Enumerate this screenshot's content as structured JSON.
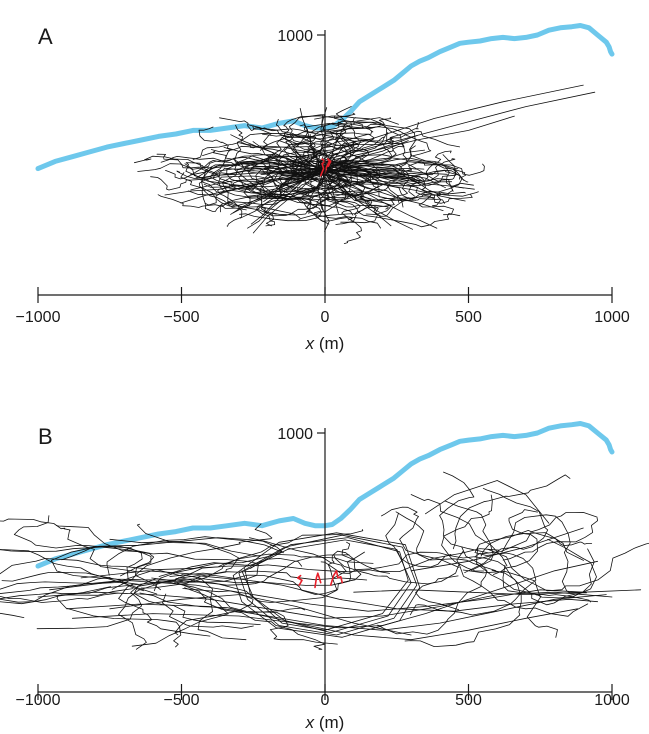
{
  "chart_data": [
    {
      "type": "line",
      "panel_label": "A",
      "xlabel_var": "x",
      "xlabel_unit": " (m)",
      "xlim": [
        -1000,
        1000
      ],
      "ylim": [
        -90,
        1000
      ],
      "x_ticks": [
        -1000,
        -500,
        0,
        500,
        1000
      ],
      "x_tick_labels": [
        "−1000",
        "−500",
        "0",
        "500",
        "1000"
      ],
      "y_ticks": [
        1000
      ],
      "y_tick_labels": [
        "1000"
      ],
      "grid": false,
      "legend": "none",
      "colors": {
        "coastline": "#6ec8ec",
        "tracks": "#111111",
        "highlight": "#e8202a"
      },
      "coastline": {
        "x": [
          -1000,
          -940,
          -880,
          -820,
          -760,
          -700,
          -640,
          -580,
          -520,
          -460,
          -400,
          -340,
          -280,
          -220,
          -160,
          -110,
          -70,
          -35,
          0,
          25,
          55,
          90,
          120,
          160,
          200,
          240,
          270,
          300,
          330,
          360,
          400,
          440,
          470,
          500,
          540,
          580,
          620,
          660,
          700,
          740,
          780,
          820,
          860,
          890,
          920,
          950,
          980,
          990,
          995,
          1000
        ],
        "y": [
          440,
          470,
          490,
          510,
          530,
          545,
          560,
          575,
          585,
          600,
          600,
          610,
          620,
          610,
          630,
          640,
          620,
          610,
          610,
          615,
          640,
          680,
          720,
          750,
          780,
          810,
          840,
          870,
          890,
          905,
          930,
          950,
          965,
          970,
          975,
          985,
          990,
          985,
          990,
          1000,
          1020,
          1030,
          1035,
          1040,
          1030,
          1000,
          970,
          950,
          930,
          920
        ]
      },
      "track_count": 110,
      "track_xspread_m": 150,
      "track_yspread_m": 70,
      "track_center": [
        -20,
        430
      ],
      "far_tracks": [
        {
          "x": [
            -60,
            150,
            380,
            620,
            900
          ],
          "y": [
            480,
            560,
            650,
            720,
            790
          ]
        },
        {
          "x": [
            -20,
            200,
            450,
            700,
            940
          ],
          "y": [
            470,
            540,
            620,
            700,
            760
          ]
        },
        {
          "x": [
            -40,
            120,
            320,
            500,
            660
          ],
          "y": [
            460,
            500,
            560,
            600,
            660
          ]
        },
        {
          "x": [
            -100,
            -150,
            -280,
            -380,
            -450
          ],
          "y": [
            450,
            460,
            460,
            450,
            400
          ]
        },
        {
          "x": [
            -30,
            80,
            200,
            300,
            390
          ],
          "y": [
            440,
            380,
            300,
            240,
            190
          ]
        },
        {
          "x": [
            0,
            60,
            120,
            180,
            230
          ],
          "y": [
            430,
            360,
            300,
            250,
            200
          ]
        },
        {
          "x": [
            -50,
            -120,
            -190,
            -230,
            -270
          ],
          "y": [
            420,
            340,
            270,
            220,
            190
          ]
        },
        {
          "x": [
            -20,
            -80,
            -140,
            -200,
            -250
          ],
          "y": [
            430,
            360,
            300,
            240,
            170
          ]
        },
        {
          "x": [
            20,
            120,
            250,
            350,
            420
          ],
          "y": [
            420,
            440,
            420,
            400,
            360
          ]
        }
      ],
      "highlight_tracks": [
        {
          "x": [
            -15,
            -5,
            -10,
            0,
            -10
          ],
          "y": [
            410,
            440,
            460,
            470,
            480
          ]
        },
        {
          "x": [
            0,
            5,
            15,
            10,
            20,
            12
          ],
          "y": [
            420,
            445,
            470,
            480,
            470,
            450
          ]
        }
      ]
    },
    {
      "type": "line",
      "panel_label": "B",
      "xlabel_var": "x",
      "xlabel_unit": " (m)",
      "xlim": [
        -1000,
        1000
      ],
      "ylim": [
        -90,
        1000
      ],
      "x_ticks": [
        -1000,
        -500,
        0,
        500,
        1000
      ],
      "x_tick_labels": [
        "−1000",
        "−500",
        "0",
        "500",
        "1000"
      ],
      "y_ticks": [
        1000
      ],
      "y_tick_labels": [
        "1000"
      ],
      "grid": false,
      "legend": "none",
      "colors": {
        "coastline": "#6ec8ec",
        "tracks": "#111111",
        "highlight": "#e8202a"
      },
      "coastline": {
        "x": [
          -1000,
          -940,
          -880,
          -820,
          -760,
          -700,
          -640,
          -580,
          -520,
          -460,
          -400,
          -340,
          -280,
          -220,
          -160,
          -110,
          -70,
          -35,
          0,
          25,
          55,
          90,
          120,
          160,
          200,
          240,
          270,
          300,
          330,
          360,
          400,
          440,
          470,
          500,
          540,
          580,
          620,
          660,
          700,
          740,
          780,
          820,
          860,
          890,
          920,
          950,
          980,
          990,
          995,
          1000
        ],
        "y": [
          440,
          470,
          490,
          510,
          530,
          545,
          560,
          575,
          585,
          600,
          600,
          610,
          620,
          610,
          630,
          640,
          620,
          610,
          610,
          615,
          640,
          680,
          720,
          750,
          780,
          810,
          840,
          870,
          890,
          905,
          930,
          950,
          965,
          970,
          975,
          985,
          990,
          985,
          990,
          1000,
          1020,
          1030,
          1035,
          1040,
          1030,
          1000,
          970,
          950,
          930,
          920
        ]
      },
      "loop_tracks": [
        {
          "x": [
            -260,
            -120,
            80,
            260,
            290,
            200,
            0,
            -150,
            -260,
            -280
          ],
          "y": [
            430,
            530,
            560,
            500,
            380,
            240,
            170,
            200,
            320,
            430
          ]
        },
        {
          "x": [
            -280,
            -130,
            70,
            250,
            300,
            220,
            20,
            -140,
            -250,
            -290
          ],
          "y": [
            420,
            510,
            550,
            510,
            370,
            230,
            160,
            210,
            310,
            420
          ]
        },
        {
          "x": [
            -300,
            -140,
            60,
            270,
            320,
            240,
            40,
            -160,
            -270,
            -300
          ],
          "y": [
            410,
            520,
            570,
            520,
            360,
            220,
            150,
            190,
            300,
            410
          ]
        },
        {
          "x": [
            -320,
            -160,
            40,
            280,
            330,
            260,
            60,
            -170,
            -290,
            -320
          ],
          "y": [
            400,
            540,
            580,
            530,
            350,
            210,
            140,
            180,
            290,
            400
          ]
        }
      ],
      "western_count": 40,
      "western_center": [
        -620,
        370
      ],
      "western_spread": [
        220,
        80
      ],
      "eastern_count": 28,
      "eastern_center": [
        540,
        460
      ],
      "eastern_spread": [
        170,
        110
      ],
      "long_tracks": [
        {
          "x": [
            -1000,
            -800,
            -600,
            -400,
            -200,
            0,
            200,
            400,
            600,
            800,
            1000
          ],
          "y": [
            310,
            330,
            320,
            300,
            260,
            220,
            230,
            270,
            320,
            330,
            310
          ]
        },
        {
          "x": [
            -960,
            -700,
            -450,
            -250,
            -50,
            150,
            350,
            550,
            750,
            900
          ],
          "y": [
            340,
            380,
            360,
            320,
            280,
            250,
            270,
            300,
            340,
            330
          ]
        },
        {
          "x": [
            -900,
            -650,
            -400,
            -200,
            0,
            200,
            400,
            600,
            800,
            980
          ],
          "y": [
            260,
            280,
            270,
            230,
            190,
            170,
            200,
            250,
            300,
            320
          ]
        },
        {
          "x": [
            -850,
            -620,
            -380,
            -150,
            50,
            250,
            450,
            650,
            850,
            950
          ],
          "y": [
            390,
            420,
            400,
            360,
            300,
            260,
            250,
            280,
            300,
            290
          ]
        },
        {
          "x": [
            -880,
            -600,
            -300,
            -100,
            100,
            300,
            500,
            700,
            880
          ],
          "y": [
            220,
            240,
            230,
            200,
            150,
            130,
            170,
            220,
            260
          ]
        },
        {
          "x": [
            -250,
            -100,
            50,
            200,
            350,
            500,
            650,
            800,
            950
          ],
          "y": [
            240,
            200,
            180,
            190,
            240,
            300,
            360,
            420,
            460
          ]
        },
        {
          "x": [
            100,
            300,
            500,
            700,
            900,
            1100
          ],
          "y": [
            330,
            340,
            330,
            320,
            330,
            340
          ]
        },
        {
          "x": [
            300,
            500,
            700,
            900
          ],
          "y": [
            420,
            460,
            520,
            600
          ]
        },
        {
          "x": [
            350,
            450,
            600,
            700,
            780
          ],
          "y": [
            660,
            740,
            800,
            740,
            620
          ]
        },
        {
          "x": [
            -750,
            -500,
            -300,
            -100,
            100,
            300
          ],
          "y": [
            260,
            300,
            320,
            270,
            200,
            150
          ]
        }
      ],
      "highlight_tracks": [
        {
          "x": [
            -90,
            -80,
            -95,
            -85
          ],
          "y": [
            360,
            380,
            390,
            400
          ]
        },
        {
          "x": [
            -35,
            -30,
            -25,
            -20,
            -15
          ],
          "y": [
            350,
            390,
            410,
            390,
            370
          ]
        },
        {
          "x": [
            20,
            30,
            40,
            45,
            55,
            60
          ],
          "y": [
            360,
            400,
            420,
            390,
            395,
            370
          ]
        }
      ]
    }
  ]
}
